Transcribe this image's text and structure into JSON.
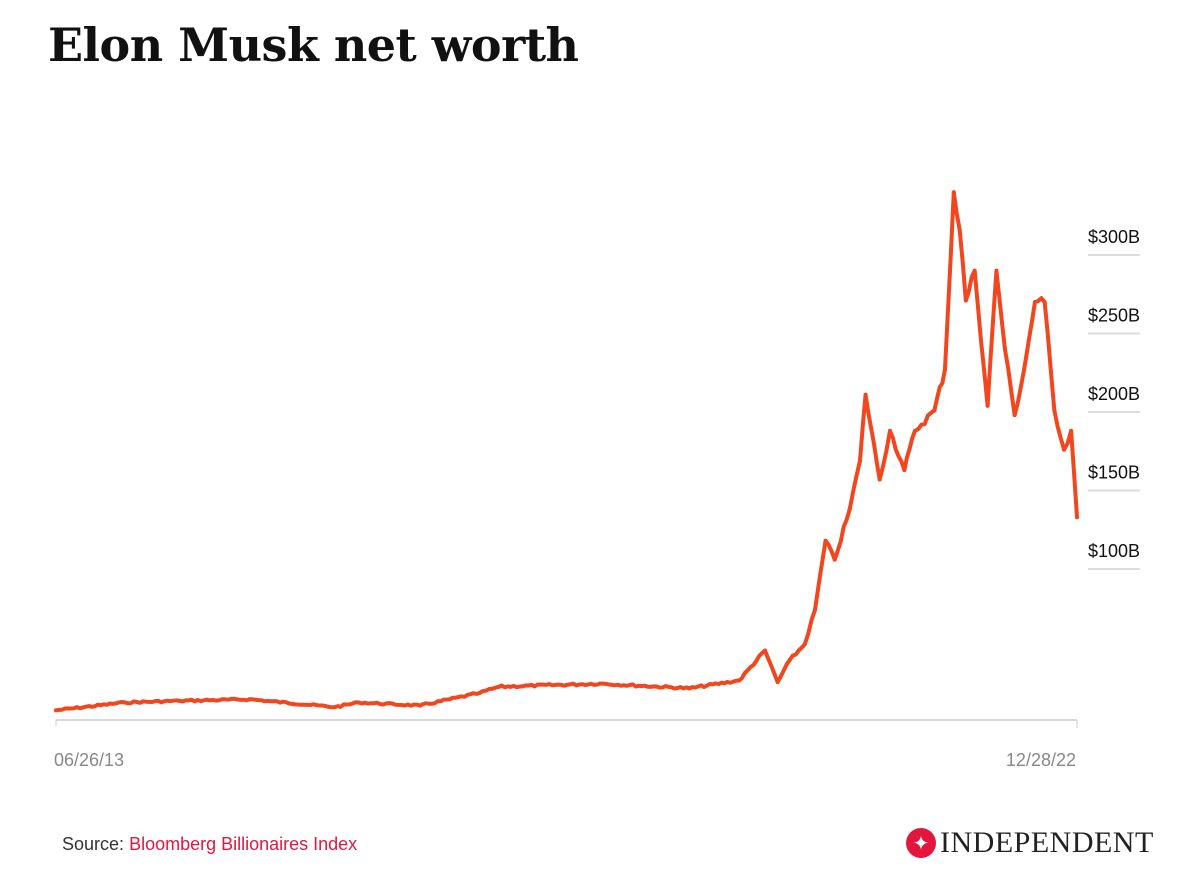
{
  "chart_data": {
    "type": "line",
    "title": "Elon Musk net worth",
    "xlabel": "",
    "ylabel": "",
    "x_tick_labels": [
      "06/26/13",
      "12/28/22"
    ],
    "y_tick_labels": [
      "$100B",
      "$150B",
      "$200B",
      "$250B",
      "$300B"
    ],
    "y_ticks": [
      100,
      150,
      200,
      250,
      300
    ],
    "ylim": [
      0,
      300
    ],
    "xlim": [
      "2013-06-26",
      "2022-12-28"
    ],
    "grid": "short ticks at right",
    "legend": "none",
    "line_color": "#f2461e",
    "series": [
      {
        "x": [
          "2013-06-26",
          "2014-02-15",
          "2014-08-20",
          "2015-04-15",
          "2016-01-30",
          "2016-04-20",
          "2016-11-15",
          "2017-06-05",
          "2017-08-10",
          "2018-07-20",
          "2019-05-20",
          "2019-11-05",
          "2020-02-01",
          "2020-03-15",
          "2020-04-25",
          "2020-06-15",
          "2020-07-20",
          "2020-08-25",
          "2020-09-25",
          "2020-11-15",
          "2020-12-20",
          "2021-01-08",
          "2021-02-25",
          "2021-04-01",
          "2021-05-20",
          "2021-06-25",
          "2021-08-30",
          "2021-10-05",
          "2021-11-04",
          "2021-11-24",
          "2021-12-15",
          "2022-01-14",
          "2022-02-27",
          "2022-03-29",
          "2022-04-27",
          "2022-05-30",
          "2022-07-01",
          "2022-08-07",
          "2022-09-09",
          "2022-10-12",
          "2022-11-14",
          "2022-12-08",
          "2022-12-28"
        ],
        "values": [
          10,
          15,
          16,
          17,
          12,
          15,
          13,
          21,
          25,
          27,
          24,
          29,
          48,
          28,
          42,
          52,
          74,
          118,
          106,
          138,
          169,
          211,
          157,
          188,
          163,
          188,
          201,
          227,
          340,
          316,
          271,
          290,
          204,
          290,
          240,
          198,
          227,
          270,
          270,
          201,
          176,
          188,
          133
        ]
      }
    ]
  },
  "source": {
    "label": "Source:",
    "name": "Bloomberg Billionaires Index"
  },
  "logo": {
    "text": "INDEPENDENT",
    "color": "#e3173e"
  }
}
